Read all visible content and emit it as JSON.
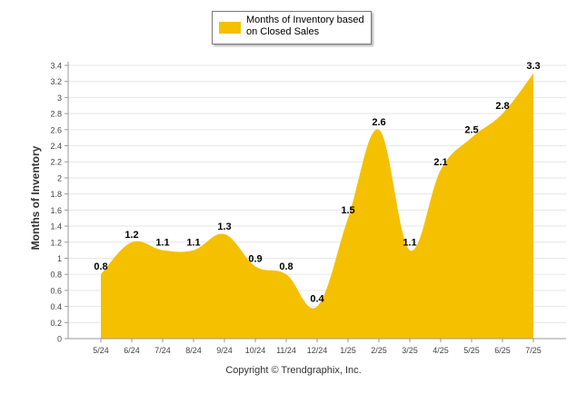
{
  "chart_data": {
    "type": "area",
    "categories": [
      "5/24",
      "6/24",
      "7/24",
      "8/24",
      "9/24",
      "10/24",
      "11/24",
      "12/24",
      "1/25",
      "2/25",
      "3/25",
      "4/25",
      "5/25",
      "6/25",
      "7/25"
    ],
    "series": [
      {
        "name": "Months of Inventory based on Closed Sales",
        "values": [
          0.8,
          1.2,
          1.1,
          1.1,
          1.3,
          0.9,
          0.8,
          0.4,
          1.5,
          2.6,
          1.1,
          2.1,
          2.5,
          2.8,
          3.3
        ],
        "color": "#f5c000"
      }
    ],
    "ylabel": "Months of Inventory",
    "xlabel": "",
    "ylim": [
      0,
      3.4
    ],
    "yticks": [
      "0",
      "0.2",
      "0.4",
      "0.6",
      "0.8",
      "1",
      "1.2",
      "1.4",
      "1.6",
      "1.8",
      "2",
      "2.2",
      "2.4",
      "2.6",
      "2.8",
      "3",
      "3.2",
      "3.4"
    ],
    "grid": true,
    "legend_position": "top-center",
    "data_labels": true
  },
  "legend": {
    "label": "Months of Inventory based on Closed Sales"
  },
  "footer": {
    "copyright": "Copyright © Trendgraphix, Inc."
  }
}
